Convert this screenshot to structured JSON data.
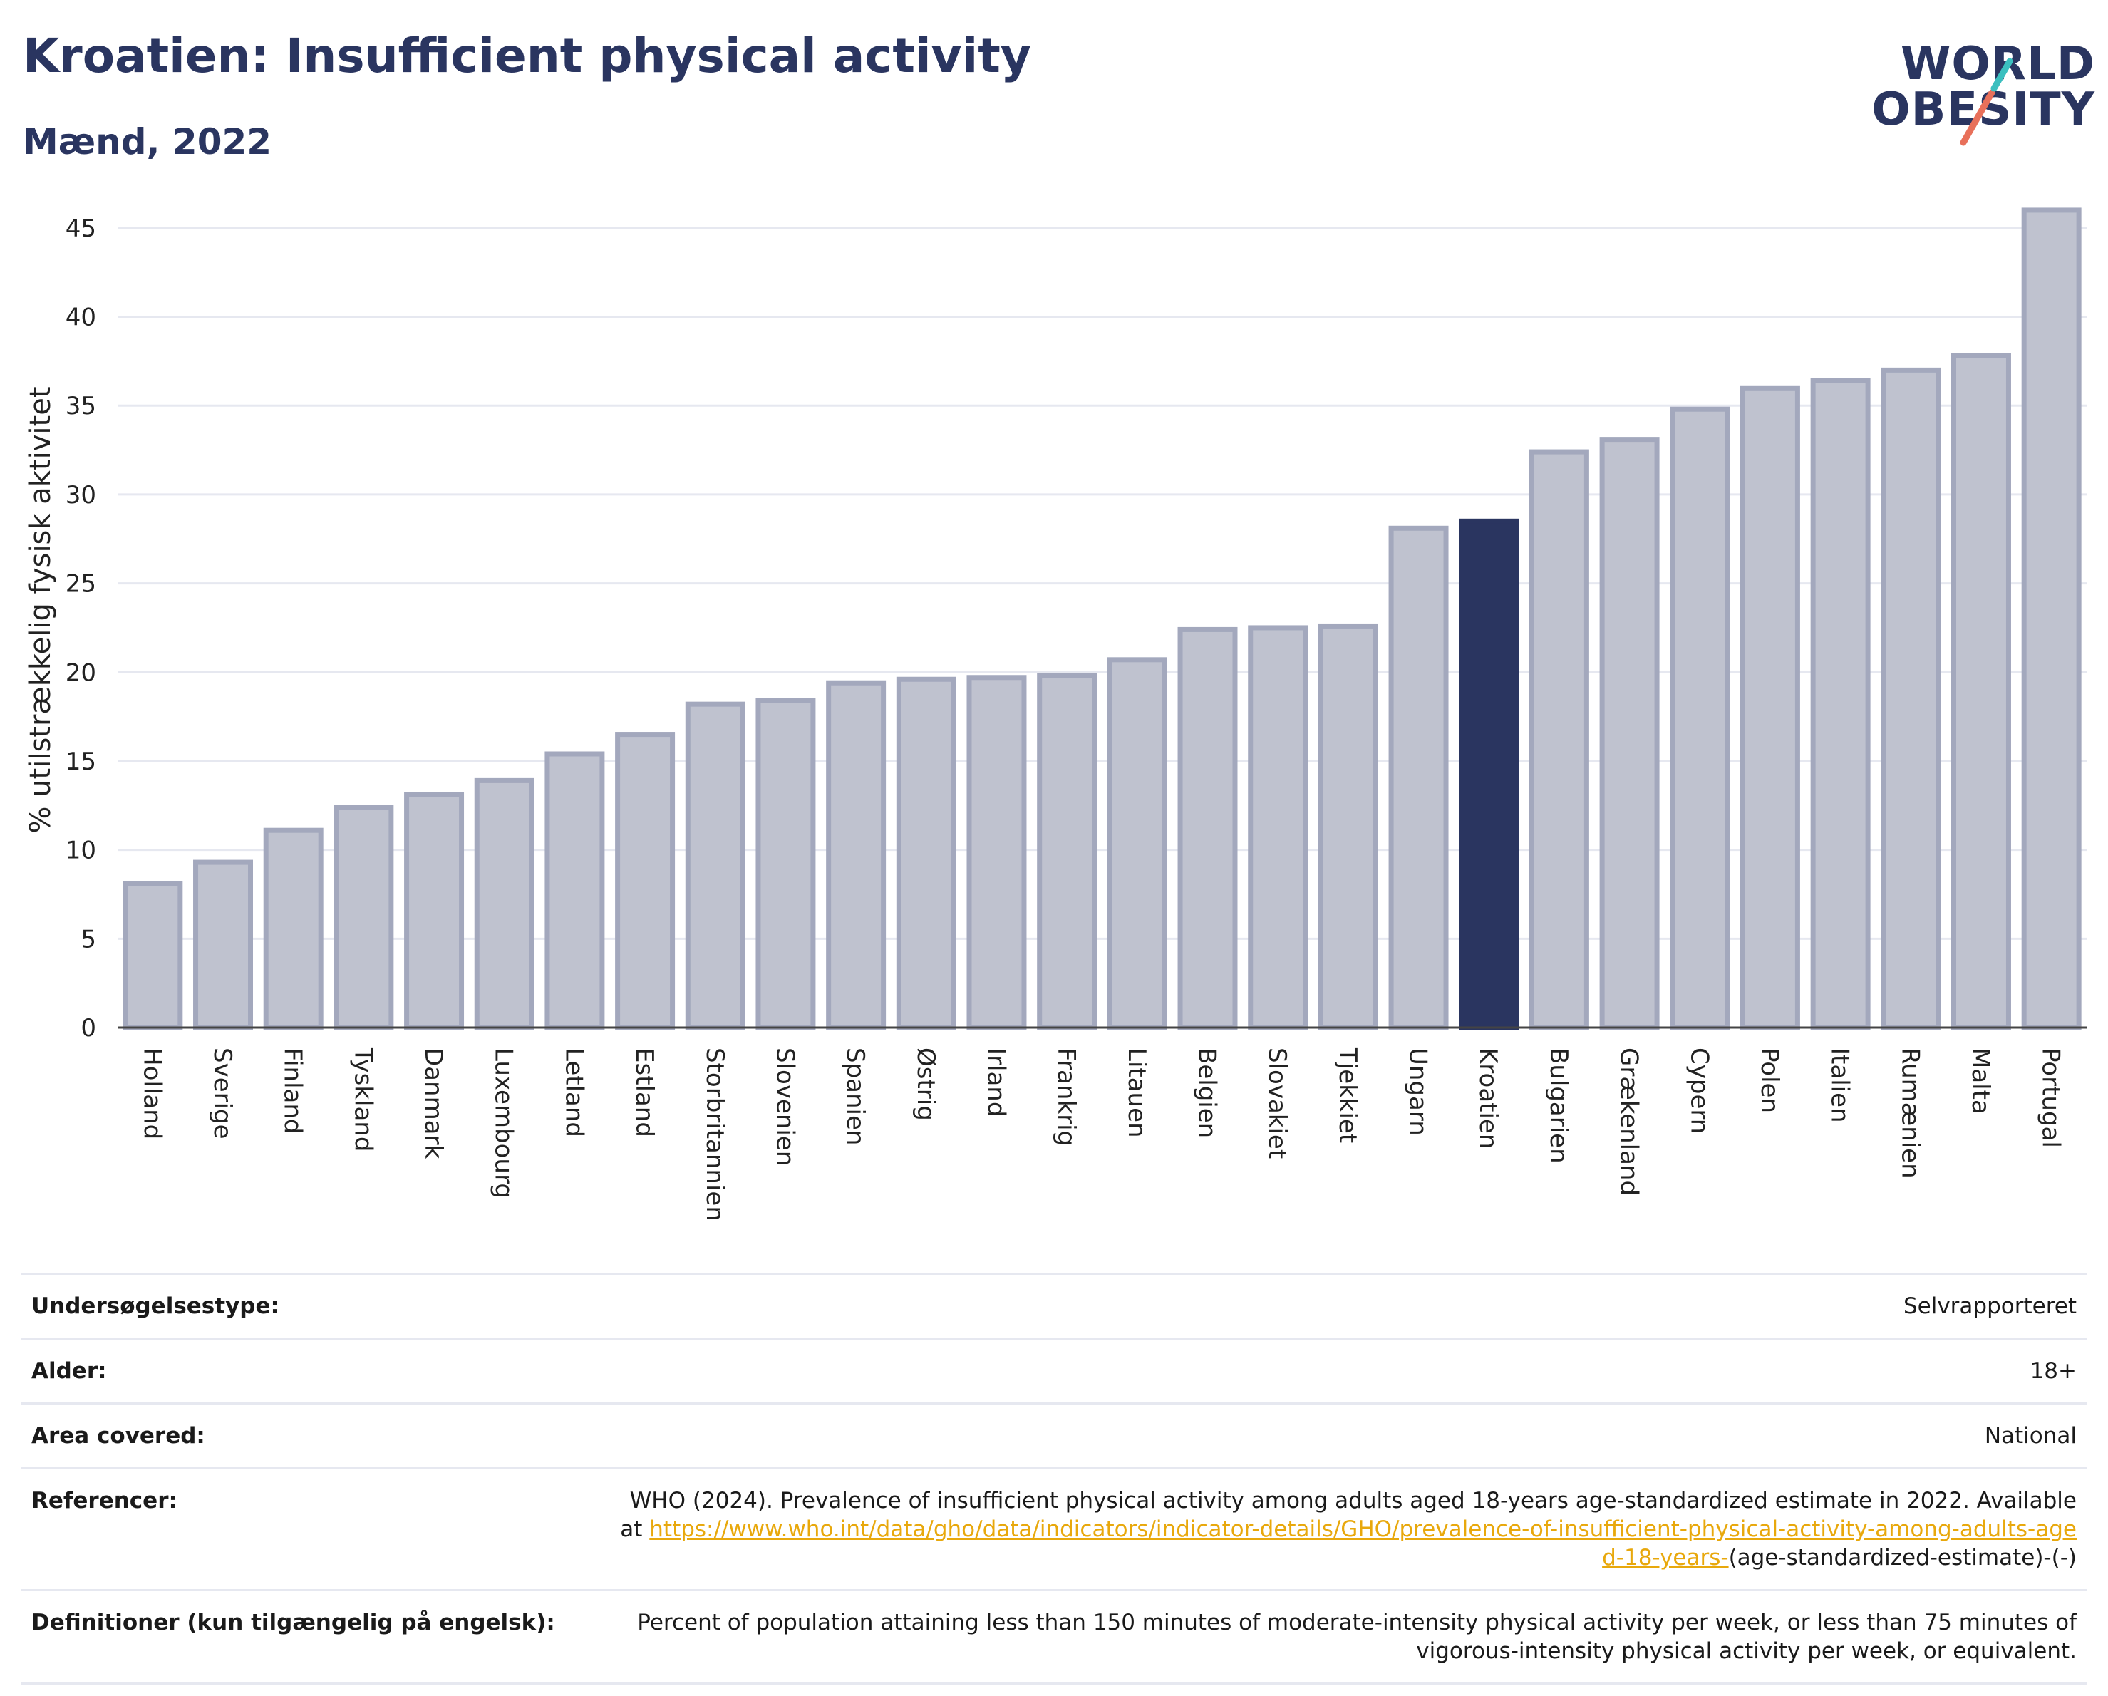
{
  "header": {
    "title": "Kroatien: Insufficient physical activity",
    "subtitle": "Mænd, 2022"
  },
  "logo": {
    "line1": "WORLD",
    "line2": "OBESITY",
    "accent_colors": [
      "#3bbfbf",
      "#e8705a"
    ]
  },
  "colors": {
    "bar": "#bfc2cf",
    "bar_border": "#a3a8bd",
    "highlight": "#2a3560",
    "grid": "#e6e8f0",
    "axis": "#444444"
  },
  "chart_data": {
    "type": "bar",
    "ylabel": "% utilstrækkelig fysisk aktivitet",
    "ylim": [
      0,
      47
    ],
    "yticks": [
      0,
      5,
      10,
      15,
      20,
      25,
      30,
      35,
      40,
      45
    ],
    "grid": true,
    "highlight": "Kroatien",
    "categories": [
      "Holland",
      "Sverige",
      "Finland",
      "Tyskland",
      "Danmark",
      "Luxembourg",
      "Letland",
      "Estland",
      "Storbritannien",
      "Slovenien",
      "Spanien",
      "Østrig",
      "Irland",
      "Frankrig",
      "Litauen",
      "Belgien",
      "Slovakiet",
      "Tjekkiet",
      "Ungarn",
      "Kroatien",
      "Bulgarien",
      "Grækenland",
      "Cypern",
      "Polen",
      "Italien",
      "Rumænien",
      "Malta",
      "Portugal"
    ],
    "values": [
      8.1,
      9.3,
      11.1,
      12.4,
      13.1,
      13.9,
      15.4,
      16.5,
      18.2,
      18.4,
      19.4,
      19.6,
      19.7,
      19.8,
      20.7,
      22.4,
      22.5,
      22.6,
      28.1,
      28.5,
      32.4,
      33.1,
      34.8,
      36.0,
      36.4,
      37.0,
      37.8,
      46.0
    ]
  },
  "info": {
    "survey_type_label": "Undersøgelsestype:",
    "survey_type_value": "Selvrapporteret",
    "age_label": "Alder:",
    "age_value": "18+",
    "area_label": "Area covered:",
    "area_value": "National",
    "references_label": "Referencer:",
    "references_text": "WHO (2024). Prevalence of insufficient physical activity among adults aged 18-years age-standardized estimate in 2022. Available at",
    "references_link": "https://www.who.int/data/gho/data/indicators/indicator-details/GHO/prevalence-of-insufficient-physical-activity-among-adults-aged-18-years-",
    "references_suffix": "(age-standardized-estimate)-(-)",
    "definitions_label": "Definitioner (kun tilgængelig på engelsk):",
    "definitions_value": "Percent of population attaining less than 150 minutes of moderate-intensity physical activity per week, or less than 75 minutes of vigorous-intensity physical activity per week, or equivalent."
  }
}
